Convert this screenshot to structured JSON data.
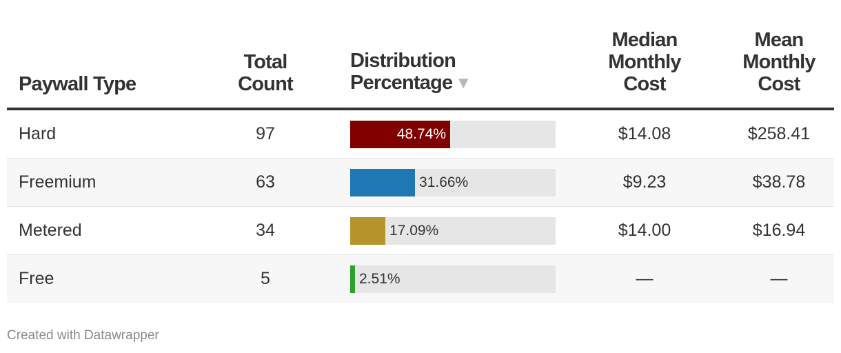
{
  "chart_data": {
    "type": "table",
    "columns": [
      "Paywall Type",
      "Total Count",
      "Distribution Percentage",
      "Median Monthly Cost",
      "Mean Monthly Cost"
    ],
    "sort_indicator": "▼",
    "rows": [
      {
        "type": "Hard",
        "count": "97",
        "pct": 48.74,
        "pct_label": "48.74%",
        "color": "#800000",
        "median": "$14.08",
        "mean": "$258.41"
      },
      {
        "type": "Freemium",
        "count": "63",
        "pct": 31.66,
        "pct_label": "31.66%",
        "color": "#1f77b4",
        "median": "$9.23",
        "mean": "$38.78"
      },
      {
        "type": "Metered",
        "count": "34",
        "pct": 17.09,
        "pct_label": "17.09%",
        "color": "#b5942c",
        "median": "$14.00",
        "mean": "$16.94"
      },
      {
        "type": "Free",
        "count": "5",
        "pct": 2.51,
        "pct_label": "2.51%",
        "color": "#2ca02c",
        "median": "—",
        "mean": "—"
      }
    ],
    "bar_max": 100
  },
  "footer": "Created with Datawrapper"
}
